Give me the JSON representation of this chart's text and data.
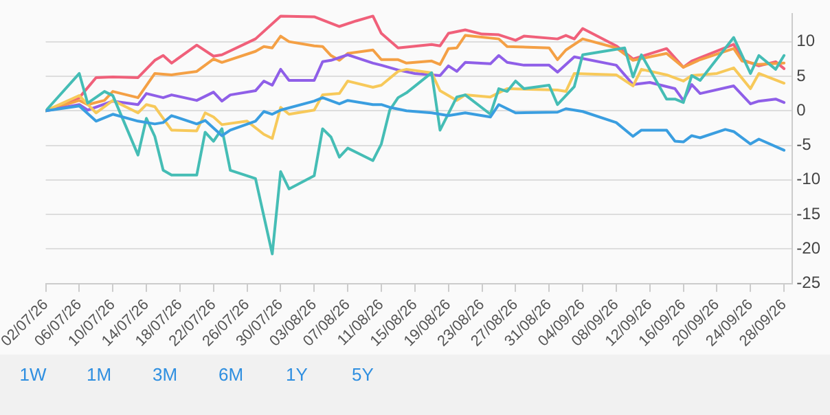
{
  "chart_data": {
    "type": "line",
    "grid": "y",
    "legend": false,
    "marker": "none",
    "line_style": "solid",
    "xlim": [
      "--07-02",
      "--09-29"
    ],
    "xticks": [
      {
        "value": "--07-02",
        "label": "02/07/26"
      },
      {
        "value": "--07-06",
        "label": "06/07/26"
      },
      {
        "value": "--07-10",
        "label": "10/07/26"
      },
      {
        "value": "--07-14",
        "label": "14/07/26"
      },
      {
        "value": "--07-18",
        "label": "18/07/26"
      },
      {
        "value": "--07-22",
        "label": "22/07/26"
      },
      {
        "value": "--07-26",
        "label": "26/07/26"
      },
      {
        "value": "--07-30",
        "label": "30/07/26"
      },
      {
        "value": "--08-03",
        "label": "03/08/26"
      },
      {
        "value": "--08-07",
        "label": "07/08/26"
      },
      {
        "value": "--08-11",
        "label": "11/08/26"
      },
      {
        "value": "--08-15",
        "label": "15/08/26"
      },
      {
        "value": "--08-19",
        "label": "19/08/26"
      },
      {
        "value": "--08-23",
        "label": "23/08/26"
      },
      {
        "value": "--08-27",
        "label": "27/08/26"
      },
      {
        "value": "--08-31",
        "label": "31/08/26"
      },
      {
        "value": "--09-04",
        "label": "04/09/26"
      },
      {
        "value": "--09-08",
        "label": "08/09/26"
      },
      {
        "value": "--09-12",
        "label": "12/09/26"
      },
      {
        "value": "--09-16",
        "label": "16/09/26"
      },
      {
        "value": "--09-20",
        "label": "20/09/26"
      },
      {
        "value": "--09-24",
        "label": "24/09/26"
      },
      {
        "value": "--09-28",
        "label": "28/09/26"
      }
    ],
    "ylim": [
      -25,
      14
    ],
    "yticks": [
      -25,
      -20,
      -15,
      -10,
      -5,
      0,
      5,
      10
    ],
    "annotations": [
      "1W",
      "1M",
      "3M",
      "6M",
      "1Y",
      "5Y"
    ],
    "series": [
      {
        "color": "#3a9ee0",
        "x": [
          "--07-02",
          "--07-06",
          "--07-08",
          "--07-10",
          "--07-13",
          "--07-15",
          "--07-16",
          "--07-17",
          "--07-20",
          "--07-21",
          "--07-23",
          "--07-24",
          "--07-27",
          "--07-28",
          "--07-29",
          "--07-30",
          "--08-03",
          "--08-04",
          "--08-06",
          "--08-07",
          "--08-10",
          "--08-11",
          "--08-12",
          "--08-14",
          "--08-17",
          "--08-19",
          "--08-21",
          "--08-24",
          "--08-25",
          "--08-27",
          "--09-01",
          "--09-02",
          "--09-04",
          "--09-08",
          "--09-10",
          "--09-11",
          "--09-14",
          "--09-15",
          "--09-16",
          "--09-17",
          "--09-18",
          "--09-21",
          "--09-22",
          "--09-24",
          "--09-25",
          "--09-28"
        ],
        "values": [
          0,
          0.7,
          -1.5,
          -0.5,
          -1.5,
          -1.9,
          -1.7,
          -0.7,
          -1.9,
          -1.4,
          -3.6,
          -2.8,
          -1.5,
          -0.1,
          -0.5,
          0.1,
          1.4,
          1.9,
          1,
          1.5,
          0.9,
          0.9,
          0.5,
          0,
          -0.3,
          -0.7,
          -0.3,
          -0.9,
          0.9,
          -0.3,
          -0.2,
          0.3,
          -0.1,
          -1.7,
          -3.7,
          -2.8,
          -2.8,
          -4.4,
          -4.5,
          -3.6,
          -3.9,
          -2.7,
          -3,
          -4.8,
          -4.1,
          -5.7
        ]
      },
      {
        "color": "#45bdb5",
        "x": [
          "--07-02",
          "--07-06",
          "--07-07",
          "--07-09",
          "--07-10",
          "--07-13",
          "--07-14",
          "--07-15",
          "--07-16",
          "--07-17",
          "--07-20",
          "--07-21",
          "--07-22",
          "--07-23",
          "--07-24",
          "--07-27",
          "--07-29",
          "--07-30",
          "--07-31",
          "--08-03",
          "--08-04",
          "--08-05",
          "--08-06",
          "--08-07",
          "--08-10",
          "--08-11",
          "--08-12",
          "--08-13",
          "--08-14",
          "--08-17",
          "--08-18",
          "--08-20",
          "--08-21",
          "--08-24",
          "--08-25",
          "--08-26",
          "--08-27",
          "--08-28",
          "--08-31",
          "--09-01",
          "--09-03",
          "--09-04",
          "--09-09",
          "--09-10",
          "--09-11",
          "--09-14",
          "--09-15",
          "--09-16",
          "--09-17",
          "--09-18",
          "--09-22",
          "--09-24",
          "--09-25",
          "--09-27",
          "--09-28"
        ],
        "values": [
          0,
          5.4,
          1.1,
          2.8,
          2.2,
          -6.4,
          -1.1,
          -3.7,
          -8.6,
          -9.3,
          -9.3,
          -3.1,
          -4.4,
          -2.6,
          -8.6,
          -9.8,
          -20.7,
          -8.8,
          -11.3,
          -9.4,
          -2.6,
          -3.8,
          -6.7,
          -5.4,
          -7.2,
          -4.8,
          0.1,
          1.9,
          2.6,
          5.5,
          -2.8,
          2,
          2.3,
          -0.5,
          3.2,
          2.8,
          4.3,
          3.2,
          3.7,
          0.9,
          3.5,
          8.1,
          9.1,
          4.9,
          8.1,
          1.7,
          1.7,
          1.2,
          5.1,
          4.4,
          10.6,
          5.4,
          8,
          6,
          8
        ]
      },
      {
        "color": "#f7c95a",
        "x": [
          "--07-02",
          "--07-06",
          "--07-08",
          "--07-10",
          "--07-13",
          "--07-14",
          "--07-15",
          "--07-17",
          "--07-20",
          "--07-21",
          "--07-22",
          "--07-23",
          "--07-26",
          "--07-28",
          "--07-29",
          "--07-30",
          "--07-31",
          "--08-03",
          "--08-04",
          "--08-06",
          "--08-07",
          "--08-10",
          "--08-11",
          "--08-13",
          "--08-14",
          "--08-17",
          "--08-18",
          "--08-20",
          "--08-21",
          "--08-24",
          "--08-26",
          "--09-01",
          "--09-02",
          "--09-03",
          "--09-08",
          "--09-10",
          "--09-11",
          "--09-14",
          "--09-16",
          "--09-17",
          "--09-20",
          "--09-22",
          "--09-24",
          "--09-25",
          "--09-28"
        ],
        "values": [
          0,
          2.2,
          -0.3,
          1.5,
          -0.3,
          0.9,
          0.6,
          -2.8,
          -2.9,
          -0.3,
          -0.9,
          -2,
          -1.5,
          -3.4,
          -4,
          0.5,
          -0.5,
          0.1,
          2.3,
          2.5,
          4.3,
          3.4,
          3.7,
          5.7,
          6,
          5.5,
          2.9,
          1.5,
          2.3,
          2,
          3.2,
          3,
          2.8,
          5.4,
          5.2,
          3.6,
          6,
          5.2,
          4.3,
          5.1,
          5.4,
          6.2,
          3.2,
          5.4,
          4
        ]
      },
      {
        "color": "#8f5fe8",
        "x": [
          "--07-02",
          "--07-06",
          "--07-07",
          "--07-10",
          "--07-13",
          "--07-14",
          "--07-16",
          "--07-17",
          "--07-20",
          "--07-22",
          "--07-23",
          "--07-24",
          "--07-27",
          "--07-28",
          "--07-29",
          "--07-30",
          "--07-31",
          "--08-03",
          "--08-04",
          "--08-05",
          "--08-07",
          "--08-10",
          "--08-11",
          "--08-13",
          "--08-15",
          "--08-17",
          "--08-18",
          "--08-19",
          "--08-20",
          "--08-21",
          "--08-24",
          "--08-25",
          "--08-26",
          "--08-28",
          "--08-31",
          "--09-01",
          "--09-03",
          "--09-08",
          "--09-10",
          "--09-12",
          "--09-15",
          "--09-16",
          "--09-17",
          "--09-18",
          "--09-22",
          "--09-24",
          "--09-25",
          "--09-27",
          "--09-28"
        ],
        "values": [
          0,
          0.9,
          0.1,
          1.4,
          0.9,
          2.5,
          1.9,
          2.3,
          1.5,
          2.7,
          1.4,
          2.3,
          2.9,
          4.3,
          3.7,
          6,
          4.4,
          4.4,
          7.1,
          7.3,
          8.1,
          6.9,
          6.6,
          5.9,
          5.4,
          5.2,
          5.1,
          6.5,
          5.7,
          7,
          6.8,
          8,
          7,
          6.6,
          6.6,
          5.6,
          7.8,
          6.6,
          3.8,
          4.1,
          3.2,
          1.5,
          3.8,
          2.5,
          3.6,
          1,
          1.4,
          1.7,
          1.2
        ]
      },
      {
        "color": "#f4a045",
        "x": [
          "--07-02",
          "--07-06",
          "--07-07",
          "--07-09",
          "--07-10",
          "--07-13",
          "--07-15",
          "--07-17",
          "--07-20",
          "--07-22",
          "--07-23",
          "--07-27",
          "--07-28",
          "--07-29",
          "--07-30",
          "--07-31",
          "--08-03",
          "--08-04",
          "--08-05",
          "--08-06",
          "--08-07",
          "--08-10",
          "--08-11",
          "--08-13",
          "--08-14",
          "--08-17",
          "--08-18",
          "--08-19",
          "--08-20",
          "--08-21",
          "--08-25",
          "--08-26",
          "--08-31",
          "--09-01",
          "--09-02",
          "--09-04",
          "--09-08",
          "--09-10",
          "--09-14",
          "--09-16",
          "--09-18",
          "--09-22",
          "--09-23",
          "--09-25",
          "--09-28"
        ],
        "values": [
          0,
          1.5,
          0.9,
          1.5,
          2.8,
          1.9,
          5.4,
          5.2,
          5.7,
          7.5,
          7,
          8.6,
          9.3,
          9.1,
          10.8,
          10,
          9.4,
          9.3,
          8,
          7.3,
          8.3,
          8.8,
          7.4,
          7.4,
          6.9,
          7.2,
          6.7,
          9,
          9.1,
          10.9,
          10.4,
          9.3,
          9.1,
          7.4,
          8.8,
          10.4,
          9.1,
          7.3,
          8.3,
          6.3,
          7.4,
          9,
          7.2,
          6.7,
          6.9
        ]
      },
      {
        "color": "#f0607a",
        "x": [
          "--07-02",
          "--07-06",
          "--07-08",
          "--07-10",
          "--07-13",
          "--07-15",
          "--07-16",
          "--07-17",
          "--07-20",
          "--07-22",
          "--07-23",
          "--07-27",
          "--07-30",
          "--08-03",
          "--08-06",
          "--08-08",
          "--08-10",
          "--08-11",
          "--08-13",
          "--08-17",
          "--08-18",
          "--08-19",
          "--08-21",
          "--08-23",
          "--08-25",
          "--08-27",
          "--08-28",
          "--09-01",
          "--09-02",
          "--09-03",
          "--09-04",
          "--09-08",
          "--09-10",
          "--09-14",
          "--09-16",
          "--09-17",
          "--09-22",
          "--09-23",
          "--09-25",
          "--09-27",
          "--09-28"
        ],
        "values": [
          0,
          1.9,
          4.8,
          4.9,
          4.8,
          7.3,
          8,
          6.9,
          9.5,
          7.9,
          8.1,
          10.4,
          13.7,
          13.6,
          12.2,
          13,
          13.7,
          11.2,
          9.1,
          9.6,
          9.4,
          11.2,
          11.7,
          11.1,
          11,
          10.2,
          10.8,
          10.4,
          10.9,
          10.4,
          11.9,
          9.4,
          7.5,
          9,
          6.3,
          7.2,
          9.6,
          7.4,
          6.5,
          7.1,
          6.1
        ]
      }
    ]
  }
}
